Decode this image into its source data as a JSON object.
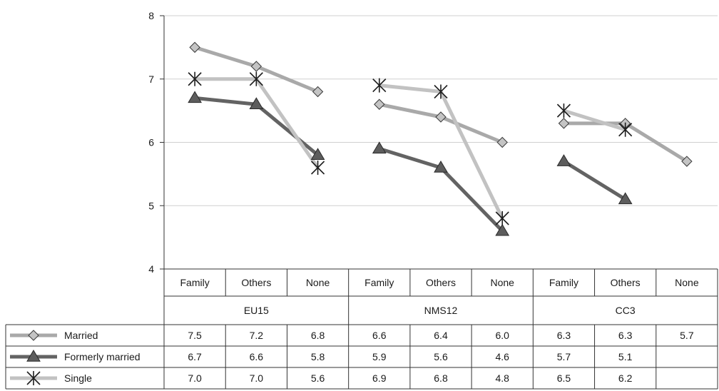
{
  "chart_data": {
    "type": "line",
    "title": "",
    "xlabel": "",
    "ylabel": "",
    "ylim": [
      4,
      8
    ],
    "yticks": [
      4,
      5,
      6,
      7,
      8
    ],
    "grid": true,
    "legend_position": "bottom-left (in data table)",
    "groups": [
      {
        "name": "EU15",
        "categories": [
          "Family",
          "Others",
          "None"
        ]
      },
      {
        "name": "NMS12",
        "categories": [
          "Family",
          "Others",
          "None"
        ]
      },
      {
        "name": "CC3",
        "categories": [
          "Family",
          "Others",
          "None"
        ]
      }
    ],
    "series": [
      {
        "name": "Married",
        "marker": "diamond",
        "color": "#a9a9a9",
        "values": [
          7.5,
          7.2,
          6.8,
          6.6,
          6.4,
          6.0,
          6.3,
          6.3,
          5.7
        ],
        "labels": [
          "7.5",
          "7.2",
          "6.8",
          "6.6",
          "6.4",
          "6.0",
          "6.3",
          "6.3",
          "5.7"
        ]
      },
      {
        "name": "Formerly married",
        "marker": "triangle",
        "color": "#636363",
        "values": [
          6.7,
          6.6,
          5.8,
          5.9,
          5.6,
          4.6,
          5.7,
          5.1,
          null
        ],
        "labels": [
          "6.7",
          "6.6",
          "5.8",
          "5.9",
          "5.6",
          "4.6",
          "5.7",
          "5.1",
          ""
        ]
      },
      {
        "name": "Single",
        "marker": "asterisk",
        "color": "#c2c2c2",
        "values": [
          7.0,
          7.0,
          5.6,
          6.9,
          6.8,
          4.8,
          6.5,
          6.2,
          null
        ],
        "labels": [
          "7.0",
          "7.0",
          "5.6",
          "6.9",
          "6.8",
          "4.8",
          "6.5",
          "6.2",
          ""
        ]
      }
    ]
  }
}
